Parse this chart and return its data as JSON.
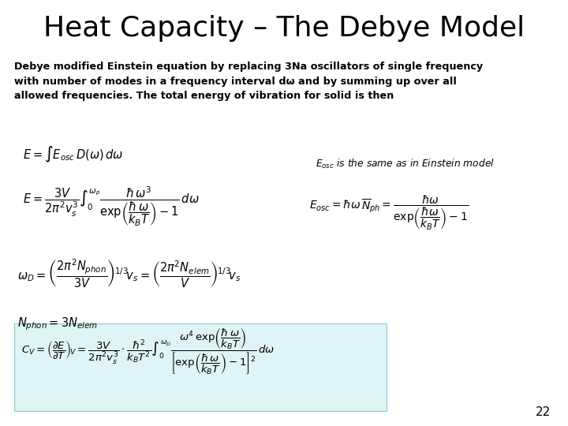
{
  "title": "Heat Capacity – The Debye Model",
  "title_fontsize": 26,
  "bg_color": "#ffffff",
  "highlight_color": "#dff5f5",
  "page_number": "22",
  "body_line1": "Debye modified Einstein equation by replacing 3N",
  "body_line1b": "a",
  "body_line1c": " oscillators of single frequency",
  "body_line2": "with number of modes in a frequency interval dω and by summing up over all",
  "body_line3": "allowed frequencies. The total energy of vibration for solid is then",
  "eq1": "$E = \\int E_{osc}\\,D(\\omega)\\,d\\omega$",
  "eq2": "$E = \\dfrac{3V}{2\\pi^2 v_s^3} \\int_0^{\\omega_p} \\dfrac{\\hbar\\,\\omega^3}{\\exp\\!\\left(\\dfrac{\\hbar\\,\\omega}{k_B T}\\right)-1}\\,d\\omega$",
  "eq3": "$\\omega_D = \\left(\\dfrac{2\\pi^2 N_{phon}}{3V}\\right)^{\\!1/3}\\!v_s = \\left(\\dfrac{2\\pi^2 N_{elem}}{V}\\right)^{\\!1/3}\\!v_s$",
  "eq4": "$N_{phon} = 3N_{elem}$",
  "eq5_label": "$E_{osc}$ is the same as in Einstein model",
  "eq5": "$E_{osc} = \\hbar\\omega\\,\\overline{N}_{ph} = \\dfrac{\\hbar\\omega}{\\exp\\!\\left(\\dfrac{\\hbar\\omega}{k_B T}\\right)-1}$",
  "eq6": "$C_V = \\left(\\dfrac{\\partial E}{\\partial T}\\right)_{\\!V} = \\dfrac{3V}{2\\pi^2 v_s^3}\\cdot\\dfrac{\\hbar^2}{k_B T^2}\\int_0^{\\omega_D} \\dfrac{\\omega^4\\,\\exp\\!\\left(\\dfrac{\\hbar\\,\\omega}{k_B T}\\right)}{\\left[\\exp\\!\\left(\\dfrac{\\hbar\\,\\omega}{k_B T}\\right)-1\\right]^2}\\,d\\omega$"
}
